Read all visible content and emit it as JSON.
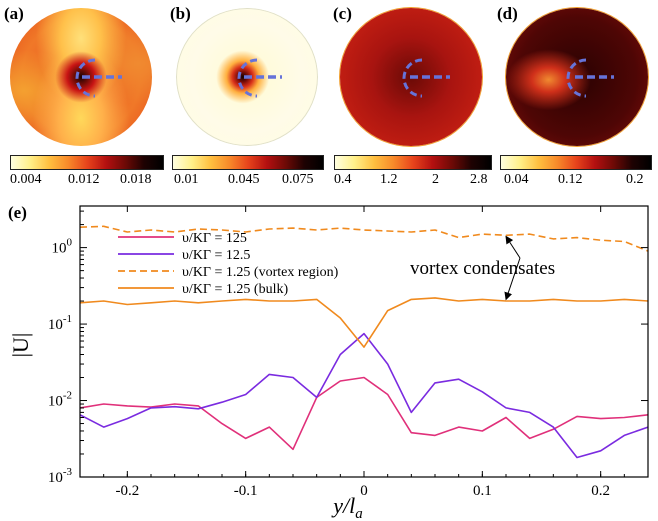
{
  "panels": [
    {
      "label": "(a)",
      "colorbar_ticks": [
        "0.004",
        "0.012",
        "0.018"
      ]
    },
    {
      "label": "(b)",
      "colorbar_ticks": [
        "0.01",
        "0.045",
        "0.075"
      ]
    },
    {
      "label": "(c)",
      "colorbar_ticks": [
        "0.4",
        "1.2",
        "2",
        "2.8"
      ]
    },
    {
      "label": "(d)",
      "colorbar_ticks": [
        "0.04",
        "0.12",
        "0.2"
      ]
    }
  ],
  "colors": {
    "colormap": [
      "#ffffe0",
      "#fff2a0",
      "#ffd24d",
      "#ff9c2a",
      "#f0501e",
      "#c81414",
      "#8a0f0a",
      "#4a0505",
      "#000000"
    ],
    "vortex_marker": "#6673d9",
    "series_125": "#e0307a",
    "series_12_5": "#7a2be0",
    "series_1_25": "#f08a1e"
  },
  "chart_data": {
    "type": "line",
    "panel_label": "(e)",
    "xlabel": "y/l",
    "xlabel_sub": "a",
    "ylabel": "|U|",
    "xlim": [
      -0.24,
      0.24
    ],
    "ylim": [
      0.001,
      3.5
    ],
    "yscale": "log",
    "x_ticks": [
      "-0.2",
      "-0.1",
      "0",
      "0.1",
      "0.2"
    ],
    "x_tick_values": [
      -0.2,
      -0.1,
      0,
      0.1,
      0.2
    ],
    "y_ticks": [
      {
        "base": "10",
        "exp": "0",
        "value": 1
      },
      {
        "base": "10",
        "exp": "-1",
        "value": 0.1
      },
      {
        "base": "10",
        "exp": "-2",
        "value": 0.01
      },
      {
        "base": "10",
        "exp": "-3",
        "value": 0.001
      }
    ],
    "x": [
      -0.24,
      -0.22,
      -0.2,
      -0.18,
      -0.16,
      -0.14,
      -0.12,
      -0.1,
      -0.08,
      -0.06,
      -0.04,
      -0.02,
      0,
      0.02,
      0.04,
      0.06,
      0.08,
      0.1,
      0.12,
      0.14,
      0.16,
      0.18,
      0.2,
      0.22,
      0.24
    ],
    "series": [
      {
        "name": "υ/KΓ = 125",
        "style": "solid",
        "color_key": "series_125",
        "values": [
          0.008,
          0.009,
          0.0085,
          0.0082,
          0.009,
          0.0085,
          0.005,
          0.0032,
          0.0045,
          0.0023,
          0.011,
          0.018,
          0.02,
          0.012,
          0.0038,
          0.0035,
          0.0045,
          0.004,
          0.006,
          0.0032,
          0.0042,
          0.0062,
          0.0058,
          0.006,
          0.0065
        ]
      },
      {
        "name": "υ/KΓ = 12.5",
        "style": "solid",
        "color_key": "series_12_5",
        "values": [
          0.0065,
          0.0045,
          0.0058,
          0.008,
          0.0083,
          0.0078,
          0.0095,
          0.012,
          0.022,
          0.02,
          0.011,
          0.04,
          0.075,
          0.03,
          0.007,
          0.017,
          0.019,
          0.013,
          0.008,
          0.007,
          0.0045,
          0.0018,
          0.0022,
          0.0035,
          0.0045
        ]
      },
      {
        "name": "υ/KΓ = 1.25 (vortex region)",
        "style": "dashed",
        "color_key": "series_1_25",
        "values": [
          1.85,
          1.9,
          1.6,
          1.7,
          1.6,
          1.75,
          1.7,
          1.6,
          1.75,
          1.8,
          1.7,
          1.8,
          1.7,
          1.65,
          1.6,
          1.7,
          1.35,
          1.5,
          1.45,
          1.5,
          1.3,
          1.35,
          1.25,
          1.2,
          0.9
        ]
      },
      {
        "name": "υ/KΓ = 1.25 (bulk)",
        "style": "solid",
        "color_key": "series_1_25",
        "values": [
          0.19,
          0.2,
          0.18,
          0.19,
          0.2,
          0.19,
          0.2,
          0.21,
          0.2,
          0.2,
          0.21,
          0.12,
          0.05,
          0.15,
          0.21,
          0.22,
          0.2,
          0.21,
          0.2,
          0.2,
          0.21,
          0.2,
          0.2,
          0.21,
          0.2
        ]
      }
    ],
    "annotation": {
      "text": "vortex condensates",
      "arrow_targets": [
        {
          "x": 0.12,
          "y": 1.4
        },
        {
          "x": 0.12,
          "y": 0.21
        }
      ]
    }
  }
}
